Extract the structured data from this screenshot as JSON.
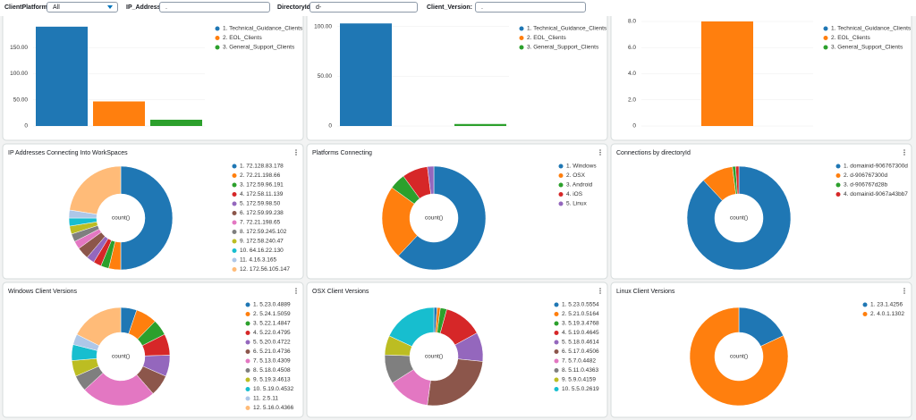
{
  "filters": [
    {
      "label": "ClientPlatform:",
      "value": "All"
    },
    {
      "label": "IP_Address:",
      "value": "."
    },
    {
      "label": "DirectoryId:",
      "value": "d-"
    },
    {
      "label": "Client_Version:",
      "value": "."
    }
  ],
  "chart_data": [
    {
      "type": "bar",
      "categories": [
        "1. Technical_Guidance_Clients",
        "2. EOL_Clients",
        "3. General_Support_Clients"
      ],
      "values": [
        190,
        47,
        12
      ],
      "colors": [
        "#1f77b4",
        "#ff7f0e",
        "#2ca02c"
      ],
      "ylim": [
        0,
        200
      ],
      "yticks": [
        0,
        {
          "value": 50,
          "label": "50.00"
        },
        {
          "value": 100,
          "label": "100.00"
        },
        {
          "value": 150,
          "label": "150.00"
        }
      ]
    },
    {
      "type": "bar",
      "categories": [
        "1. Technical_Guidance_Clients",
        "2. EOL_Clients",
        "3. General_Support_Clients"
      ],
      "values": [
        103,
        0,
        2
      ],
      "colors": [
        "#1f77b4",
        "#ff7f0e",
        "#2ca02c"
      ],
      "ylim": [
        0,
        105
      ],
      "yticks": [
        0,
        {
          "value": 50,
          "label": "50.00"
        },
        {
          "value": 100,
          "label": "100.00"
        }
      ]
    },
    {
      "type": "bar",
      "categories": [
        "1. Technical_Guidance_Clients",
        "2. EOL_Clients",
        "3. General_Support_Clients"
      ],
      "values": [
        0,
        8,
        0
      ],
      "colors": [
        "#1f77b4",
        "#ff7f0e",
        "#2ca02c"
      ],
      "ylim": [
        0,
        8
      ],
      "yticks": [
        0,
        {
          "value": 2,
          "label": "2.0"
        },
        {
          "value": 4,
          "label": "4.0"
        },
        {
          "value": 6,
          "label": "6.0"
        },
        {
          "value": 8,
          "label": "8.0"
        }
      ]
    },
    {
      "type": "pie",
      "title": "IP Addresses Connecting Into WorkSpaces",
      "center_label": "count()",
      "categories": [
        "1. 72.128.83.178",
        "2. 72.21.198.66",
        "3. 172.59.96.191",
        "4. 172.58.11.139",
        "5. 172.59.98.50",
        "6. 172.59.99.238",
        "7. 72.21.198.65",
        "8. 172.59.245.102",
        "9. 172.58.240.47",
        "10. 64.16.22.130",
        "11. 4.16.3.165",
        "12. 172.56.105.147"
      ],
      "values": [
        40,
        3,
        2,
        2,
        2,
        3,
        2,
        2,
        2,
        2,
        2,
        18
      ],
      "colors": [
        "#1f77b4",
        "#ff7f0e",
        "#2ca02c",
        "#d62728",
        "#9467bd",
        "#8c564b",
        "#e377c2",
        "#7f7f7f",
        "#bcbd22",
        "#17becf",
        "#aec7e8",
        "#ffbb78"
      ]
    },
    {
      "type": "pie",
      "title": "Platforms Connecting",
      "center_label": "count()",
      "categories": [
        "1. Windows",
        "2. OSX",
        "3. Android",
        "4. iOS",
        "5. Linux"
      ],
      "values": [
        62,
        23,
        5,
        8,
        2
      ],
      "colors": [
        "#1f77b4",
        "#ff7f0e",
        "#2ca02c",
        "#d62728",
        "#9467bd"
      ]
    },
    {
      "type": "pie",
      "title": "Connections by directoryId",
      "center_label": "count()",
      "categories": [
        "1. domainid-906767300d",
        "2. d-906767300d",
        "3. d-906767d28b",
        "4. domainid-9067a43bb7"
      ],
      "values": [
        88,
        10,
        1,
        1
      ],
      "colors": [
        "#1f77b4",
        "#ff7f0e",
        "#2ca02c",
        "#d62728"
      ]
    },
    {
      "type": "pie",
      "title": "Windows Client Versions",
      "center_label": "count()",
      "categories": [
        "1. 5.23.0.4889",
        "2. 5.24.1.5059",
        "3. 5.22.1.4847",
        "4. 5.22.0.4795",
        "5. 5.20.0.4722",
        "6. 5.21.0.4736",
        "7. 5.13.0.4309",
        "8. 5.18.0.4508",
        "9. 5.19.3.4613",
        "10. 5.19.0.4532",
        "11. 2.5.11",
        "12. 5.16.0.4366"
      ],
      "values": [
        3,
        4,
        3,
        4,
        4,
        4,
        14,
        3,
        3,
        3,
        2,
        10
      ],
      "colors": [
        "#1f77b4",
        "#ff7f0e",
        "#2ca02c",
        "#d62728",
        "#9467bd",
        "#8c564b",
        "#e377c2",
        "#7f7f7f",
        "#bcbd22",
        "#17becf",
        "#aec7e8",
        "#ffbb78"
      ]
    },
    {
      "type": "pie",
      "title": "OSX Client Versions",
      "center_label": "count()",
      "categories": [
        "1. 5.23.0.5554",
        "2. 5.21.0.5164",
        "3. 5.19.3.4768",
        "4. 5.19.0.4645",
        "5. 5.18.0.4614",
        "6. 5.17.0.4506",
        "7. 5.7.0.4482",
        "8. 5.11.0.4363",
        "9. 5.9.0.4159",
        "10. 5.5.0.2619"
      ],
      "values": [
        1,
        1,
        2,
        12,
        9,
        24,
        13,
        9,
        6,
        17
      ],
      "colors": [
        "#1f77b4",
        "#ff7f0e",
        "#2ca02c",
        "#d62728",
        "#9467bd",
        "#8c564b",
        "#e377c2",
        "#7f7f7f",
        "#bcbd22",
        "#17becf"
      ]
    },
    {
      "type": "pie",
      "title": "Linux Client Versions",
      "center_label": "count()",
      "categories": [
        "1. 23.1.4256",
        "2. 4.0.1.1302"
      ],
      "values": [
        18,
        82
      ],
      "colors": [
        "#1f77b4",
        "#ff7f0e"
      ]
    }
  ]
}
